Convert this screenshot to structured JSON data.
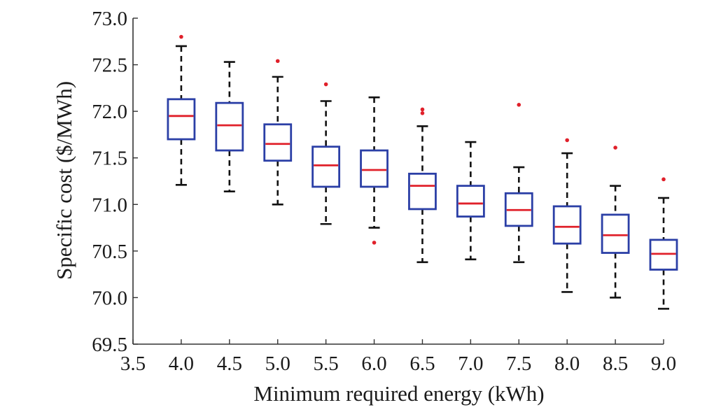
{
  "chart_data": {
    "type": "box",
    "title": "",
    "xlabel": "Minimum required energy (kWh)",
    "ylabel": "Specific cost ($/MWh)",
    "xlim": [
      3.5,
      9.0
    ],
    "ylim": [
      69.5,
      73.0
    ],
    "xticks": [
      "3.5",
      "4.0",
      "4.5",
      "5.0",
      "5.5",
      "6.0",
      "6.5",
      "7.0",
      "7.5",
      "8.0",
      "8.5",
      "9.0"
    ],
    "yticks": [
      "69.5",
      "70.0",
      "70.5",
      "71.0",
      "71.5",
      "72.0",
      "72.5",
      "73.0"
    ],
    "grid": false,
    "colors": {
      "box": "#2b3fa6",
      "median": "#e0202a",
      "whisker": "#111111",
      "outlier": "#e0202a",
      "axis": "#333333"
    },
    "boxes": [
      {
        "x": 4.0,
        "whisker_low": 71.21,
        "q1": 71.7,
        "median": 71.95,
        "q3": 72.13,
        "whisker_high": 72.7,
        "outliers": [
          72.8
        ]
      },
      {
        "x": 4.5,
        "whisker_low": 71.14,
        "q1": 71.58,
        "median": 71.85,
        "q3": 72.09,
        "whisker_high": 72.53,
        "outliers": []
      },
      {
        "x": 5.0,
        "whisker_low": 71.0,
        "q1": 71.47,
        "median": 71.65,
        "q3": 71.86,
        "whisker_high": 72.37,
        "outliers": [
          72.54
        ]
      },
      {
        "x": 5.5,
        "whisker_low": 70.79,
        "q1": 71.19,
        "median": 71.42,
        "q3": 71.62,
        "whisker_high": 72.11,
        "outliers": [
          72.29
        ]
      },
      {
        "x": 6.0,
        "whisker_low": 70.75,
        "q1": 71.19,
        "median": 71.37,
        "q3": 71.58,
        "whisker_high": 72.15,
        "outliers": [
          70.59
        ]
      },
      {
        "x": 6.5,
        "whisker_low": 70.38,
        "q1": 70.95,
        "median": 71.2,
        "q3": 71.33,
        "whisker_high": 71.84,
        "outliers": [
          72.02,
          71.98
        ]
      },
      {
        "x": 7.0,
        "whisker_low": 70.41,
        "q1": 70.87,
        "median": 71.01,
        "q3": 71.2,
        "whisker_high": 71.67,
        "outliers": []
      },
      {
        "x": 7.5,
        "whisker_low": 70.38,
        "q1": 70.77,
        "median": 70.94,
        "q3": 71.12,
        "whisker_high": 71.4,
        "outliers": [
          72.07
        ]
      },
      {
        "x": 8.0,
        "whisker_low": 70.06,
        "q1": 70.58,
        "median": 70.76,
        "q3": 70.98,
        "whisker_high": 71.55,
        "outliers": [
          71.69
        ]
      },
      {
        "x": 8.5,
        "whisker_low": 70.0,
        "q1": 70.48,
        "median": 70.67,
        "q3": 70.89,
        "whisker_high": 71.2,
        "outliers": [
          71.61
        ]
      },
      {
        "x": 9.0,
        "whisker_low": 69.88,
        "q1": 70.3,
        "median": 70.47,
        "q3": 70.62,
        "whisker_high": 71.07,
        "outliers": [
          71.27
        ]
      }
    ]
  }
}
